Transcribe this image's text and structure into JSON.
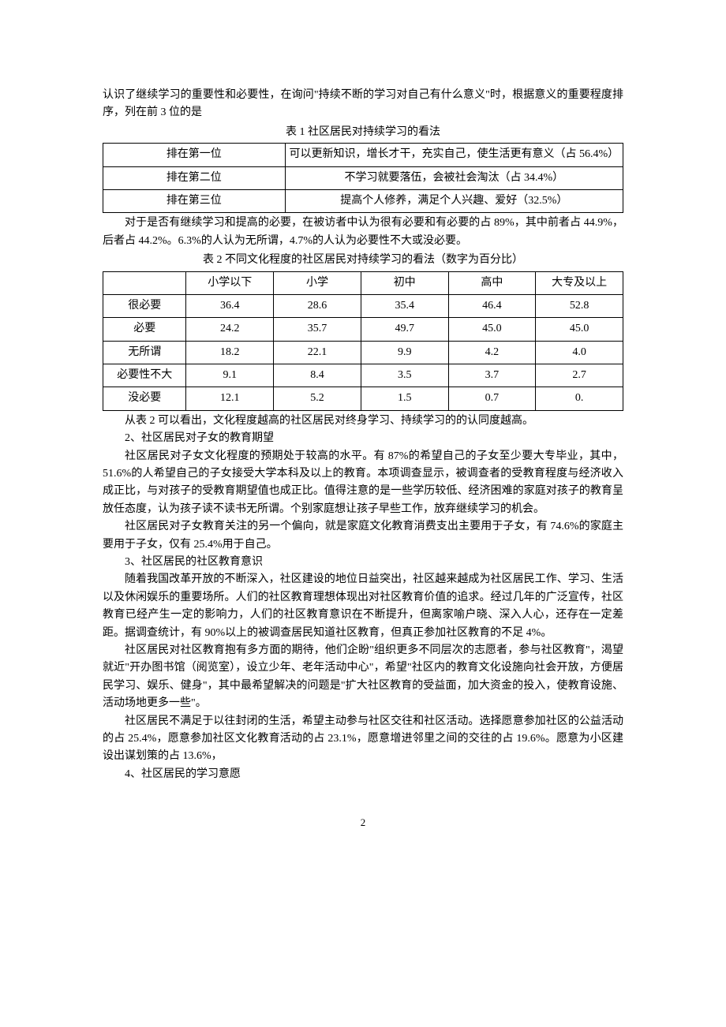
{
  "intro_paragraph": "认识了继续学习的重要性和必要性，在询问\"持续不断的学习对自己有什么意义\"时，根据意义的重要程度排序，列在前 3 位的是",
  "table1": {
    "caption": "表 1 社区居民对持续学习的看法",
    "rows": [
      {
        "rank": "排在第一位",
        "content": "可以更新知识，增长才干，充实自己，使生活更有意义（占 56.4%）"
      },
      {
        "rank": "排在第二位",
        "content": "不学习就要落伍，会被社会淘汰（占 34.4%）"
      },
      {
        "rank": "排在第三位",
        "content": "提高个人修养，满足个人兴趣、爱好（32.5%）"
      }
    ]
  },
  "para_after_t1": "对于是否有继续学习和提高的必要，在被访者中认为很有必要和有必要的占 89%，其中前者占 44.9%，后者占 44.2%。6.3%的人认为无所谓，4.7%的人认为必要性不大或没必要。",
  "table2": {
    "caption": "表 2 不同文化程度的社区居民对持续学习的看法（数字为百分比）",
    "headers": [
      "",
      "小学以下",
      "小学",
      "初中",
      "高中",
      "大专及以上"
    ],
    "rows": [
      {
        "label": "很必要",
        "vals": [
          "36.4",
          "28.6",
          "35.4",
          "46.4",
          "52.8"
        ]
      },
      {
        "label": "必要",
        "vals": [
          "24.2",
          "35.7",
          "49.7",
          "45.0",
          "45.0"
        ]
      },
      {
        "label": "无所谓",
        "vals": [
          "18.2",
          "22.1",
          "9.9",
          "4.2",
          "4.0"
        ]
      },
      {
        "label": "必要性不大",
        "vals": [
          "9.1",
          "8.4",
          "3.5",
          "3.7",
          "2.7"
        ]
      },
      {
        "label": "没必要",
        "vals": [
          "12.1",
          "5.2",
          "1.5",
          "0.7",
          "0."
        ]
      }
    ]
  },
  "para_after_t2": "从表 2 可以看出，文化程度越高的社区居民对终身学习、持续学习的的认同度越高。",
  "section2_heading": "2、社区居民对子女的教育期望",
  "section2_p1": "社区居民对子女文化程度的预期处于较高的水平。有 87%的希望自己的子女至少要大专毕业，其中，51.6%的人希望自己的子女接受大学本科及以上的教育。本项调查显示，被调查者的受教育程度与经济收入成正比，与对孩子的受教育期望值也成正比。值得注意的是一些学历较低、经济困难的家庭对孩子的教育呈放任态度，认为孩子读不读书无所谓。个别家庭想让孩子早些工作，放弃继续学习的机会。",
  "section2_p2": "社区居民对子女教育关注的另一个偏向，就是家庭文化教育消费支出主要用于子女，有 74.6%的家庭主要用于子女，仅有 25.4%用于自己。",
  "section3_heading": "3、社区居民的社区教育意识",
  "section3_p1": "随着我国改革开放的不断深入，社区建设的地位日益突出，社区越来越成为社区居民工作、学习、生活以及休闲娱乐的重要场所。人们的社区教育理想体现出对社区教育价值的追求。经过几年的广泛宣传，社区教育已经产生一定的影响力，人们的社区教育意识在不断提升，但离家喻户晓、深入人心，还存在一定差距。据调查统计，有 90%以上的被调查居民知道社区教育，但真正参加社区教育的不足 4%。",
  "section3_p2": "社区居民对社区教育抱有多方面的期待，他们企盼\"组织更多不同层次的志愿者，参与社区教育\"，渴望就近\"开办图书馆（阅览室），设立少年、老年活动中心\"，希望\"社区内的教育文化设施向社会开放，方便居民学习、娱乐、健身\"，其中最希望解决的问题是\"扩大社区教育的受益面，加大资金的投入，使教育设施、活动场地更多一些\"。",
  "section3_p3": "社区居民不满足于以往封闭的生活，希望主动参与社区交往和社区活动。选择愿意参加社区的公益活动的占 25.4%，愿意参加社区文化教育活动的占 23.1%，愿意增进邻里之间的交往的占 19.6%。愿意为小区建设出谋划策的占 13.6%，",
  "section4_heading": "4、社区居民的学习意愿",
  "page_number": "2"
}
